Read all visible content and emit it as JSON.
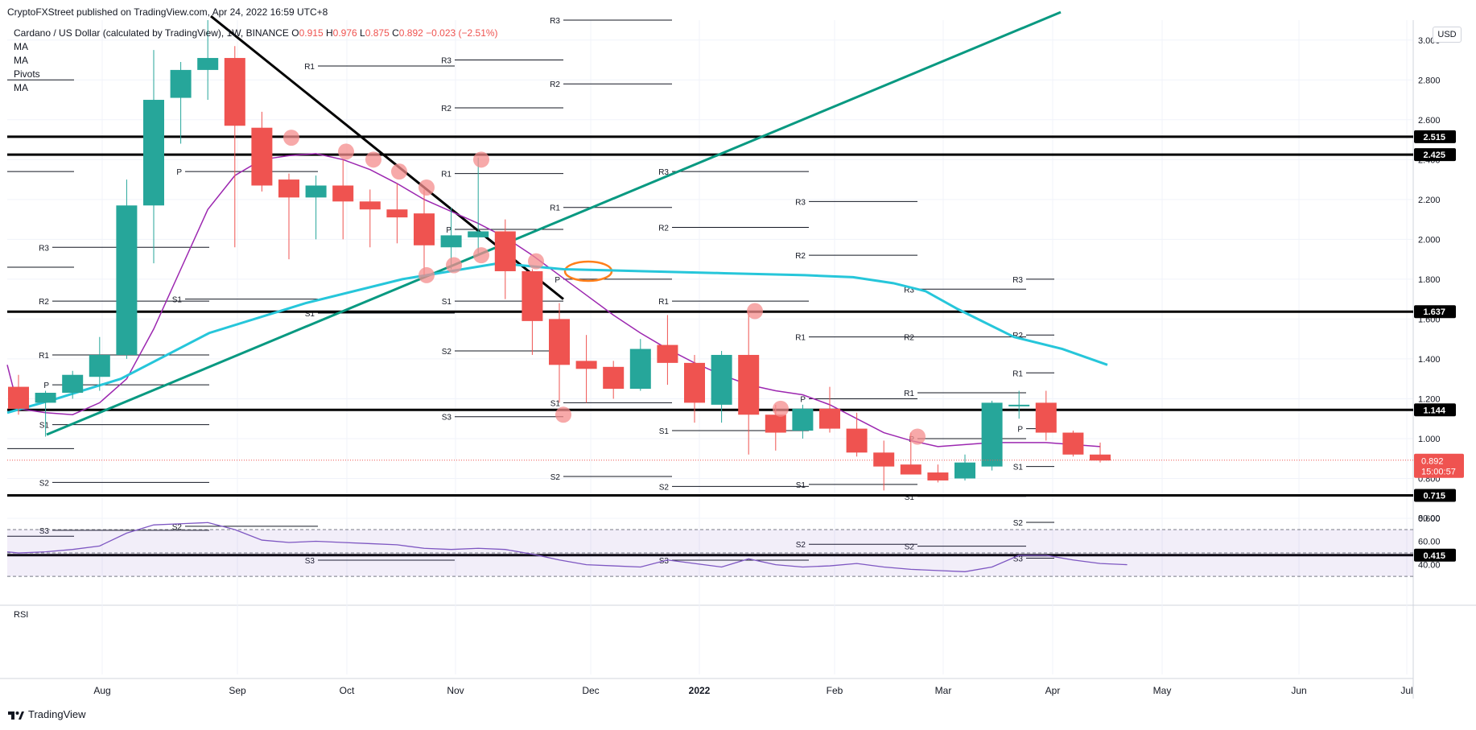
{
  "header": {
    "published": "CryptoFXStreet published on TradingView.com, Apr 24, 2022 16:59 UTC+8",
    "symbol": "Cardano / US Dollar (calculated by TradingView)",
    "interval": "1W",
    "exchange": "BINANCE",
    "open_label": "O",
    "open": "0.915",
    "high_label": "H",
    "high": "0.976",
    "low_label": "L",
    "low": "0.875",
    "close_label": "C",
    "close": "0.892",
    "change": "−0.023 (−2.51%)",
    "indicators": [
      "MA",
      "MA",
      "Pivots",
      "MA"
    ]
  },
  "currency_button": "USD",
  "footer": {
    "brand": "TradingView"
  },
  "colors": {
    "up": "#26a69a",
    "down": "#ef5350",
    "ma_short": "#9c27b0",
    "ma_long": "#26c6da",
    "trendline": "#089981",
    "bubble": "#f48c8c",
    "circle": "#ff7f1a",
    "rsi": "#7e57c2"
  },
  "chart_data": {
    "type": "candlestick",
    "price_axis": {
      "ticks": [
        "3.000",
        "2.800",
        "2.600",
        "2.400",
        "2.200",
        "2.000",
        "1.800",
        "1.600",
        "1.400",
        "1.200",
        "1.000",
        "0.800",
        "0.600"
      ],
      "ylim": [
        0.3,
        3.2
      ]
    },
    "time_axis": {
      "labels": [
        "Aug",
        "Sep",
        "Oct",
        "Nov",
        "Dec",
        "2022",
        "Feb",
        "Mar",
        "Apr",
        "May",
        "Jun",
        "Jul"
      ]
    },
    "last_price": {
      "value": "0.892",
      "countdown": "15:00:57"
    },
    "candles": [
      {
        "date": "2021-07-12",
        "o": 1.26,
        "h": 1.32,
        "l": 1.12,
        "c": 1.15
      },
      {
        "date": "2021-07-19",
        "o": 1.18,
        "h": 1.24,
        "l": 1.01,
        "c": 1.23
      },
      {
        "date": "2021-07-26",
        "o": 1.23,
        "h": 1.34,
        "l": 1.2,
        "c": 1.32
      },
      {
        "date": "2021-08-02",
        "o": 1.31,
        "h": 1.51,
        "l": 1.24,
        "c": 1.42
      },
      {
        "date": "2021-08-09",
        "o": 1.42,
        "h": 2.3,
        "l": 1.4,
        "c": 2.17
      },
      {
        "date": "2021-08-16",
        "o": 2.17,
        "h": 2.95,
        "l": 1.88,
        "c": 2.7
      },
      {
        "date": "2021-08-23",
        "o": 2.71,
        "h": 2.89,
        "l": 2.48,
        "c": 2.85
      },
      {
        "date": "2021-08-30",
        "o": 2.85,
        "h": 3.1,
        "l": 2.7,
        "c": 2.91
      },
      {
        "date": "2021-09-06",
        "o": 2.91,
        "h": 2.97,
        "l": 1.96,
        "c": 2.57
      },
      {
        "date": "2021-09-13",
        "o": 2.56,
        "h": 2.64,
        "l": 2.24,
        "c": 2.27
      },
      {
        "date": "2021-09-20",
        "o": 2.3,
        "h": 2.33,
        "l": 1.9,
        "c": 2.21
      },
      {
        "date": "2021-09-27",
        "o": 2.21,
        "h": 2.32,
        "l": 2.0,
        "c": 2.27
      },
      {
        "date": "2021-10-04",
        "o": 2.27,
        "h": 2.4,
        "l": 2.0,
        "c": 2.19
      },
      {
        "date": "2021-10-11",
        "o": 2.19,
        "h": 2.25,
        "l": 1.96,
        "c": 2.15
      },
      {
        "date": "2021-10-18",
        "o": 2.15,
        "h": 2.28,
        "l": 1.98,
        "c": 2.11
      },
      {
        "date": "2021-10-25",
        "o": 2.13,
        "h": 2.25,
        "l": 1.82,
        "c": 1.97
      },
      {
        "date": "2021-11-01",
        "o": 1.96,
        "h": 2.16,
        "l": 1.85,
        "c": 2.02
      },
      {
        "date": "2021-11-08",
        "o": 2.01,
        "h": 2.41,
        "l": 1.93,
        "c": 2.04
      },
      {
        "date": "2021-11-15",
        "o": 2.04,
        "h": 2.1,
        "l": 1.7,
        "c": 1.84
      },
      {
        "date": "2021-11-22",
        "o": 1.84,
        "h": 1.85,
        "l": 1.42,
        "c": 1.59
      },
      {
        "date": "2021-11-29",
        "o": 1.6,
        "h": 1.68,
        "l": 1.18,
        "c": 1.37
      },
      {
        "date": "2021-12-06",
        "o": 1.39,
        "h": 1.52,
        "l": 1.18,
        "c": 1.35
      },
      {
        "date": "2021-12-13",
        "o": 1.36,
        "h": 1.39,
        "l": 1.2,
        "c": 1.25
      },
      {
        "date": "2021-12-20",
        "o": 1.25,
        "h": 1.5,
        "l": 1.24,
        "c": 1.45
      },
      {
        "date": "2021-12-27",
        "o": 1.47,
        "h": 1.62,
        "l": 1.27,
        "c": 1.38
      },
      {
        "date": "2022-01-03",
        "o": 1.38,
        "h": 1.42,
        "l": 1.08,
        "c": 1.18
      },
      {
        "date": "2022-01-10",
        "o": 1.17,
        "h": 1.44,
        "l": 1.08,
        "c": 1.42
      },
      {
        "date": "2022-01-17",
        "o": 1.42,
        "h": 1.64,
        "l": 0.92,
        "c": 1.12
      },
      {
        "date": "2022-01-24",
        "o": 1.12,
        "h": 1.17,
        "l": 0.94,
        "c": 1.03
      },
      {
        "date": "2022-01-31",
        "o": 1.04,
        "h": 1.17,
        "l": 1.0,
        "c": 1.15
      },
      {
        "date": "2022-02-07",
        "o": 1.15,
        "h": 1.26,
        "l": 1.03,
        "c": 1.05
      },
      {
        "date": "2022-02-14",
        "o": 1.05,
        "h": 1.13,
        "l": 0.91,
        "c": 0.93
      },
      {
        "date": "2022-02-21",
        "o": 0.93,
        "h": 0.99,
        "l": 0.74,
        "c": 0.86
      },
      {
        "date": "2022-02-28",
        "o": 0.87,
        "h": 1.03,
        "l": 0.82,
        "c": 0.82
      },
      {
        "date": "2022-03-07",
        "o": 0.83,
        "h": 0.87,
        "l": 0.78,
        "c": 0.79
      },
      {
        "date": "2022-03-14",
        "o": 0.8,
        "h": 0.92,
        "l": 0.79,
        "c": 0.88
      },
      {
        "date": "2022-03-21",
        "o": 0.86,
        "h": 1.19,
        "l": 0.84,
        "c": 1.18
      },
      {
        "date": "2022-03-28",
        "o": 1.17,
        "h": 1.24,
        "l": 1.1,
        "c": 1.17
      },
      {
        "date": "2022-04-04",
        "o": 1.18,
        "h": 1.24,
        "l": 0.99,
        "c": 1.03
      },
      {
        "date": "2022-04-11",
        "o": 1.03,
        "h": 1.04,
        "l": 0.91,
        "c": 0.92
      },
      {
        "date": "2022-04-18",
        "o": 0.92,
        "h": 0.98,
        "l": 0.88,
        "c": 0.89
      }
    ],
    "horizontal_levels": [
      {
        "value": 2.515,
        "label": "2.515"
      },
      {
        "value": 2.425,
        "label": "2.425"
      },
      {
        "value": 1.637,
        "label": "1.637"
      },
      {
        "value": 1.144,
        "label": "1.144"
      },
      {
        "value": 0.715,
        "label": "0.715"
      },
      {
        "value": 0.415,
        "label": "0.415"
      }
    ],
    "pivot_labels": [
      "R3",
      "R2",
      "R1",
      "P",
      "S1",
      "S2",
      "S3"
    ],
    "rsi": {
      "label": "RSI",
      "ticks": [
        "80.00",
        "60.00",
        "40.00"
      ],
      "ylim": [
        28,
        82
      ],
      "bands": [
        70,
        50,
        30
      ],
      "values": [
        51,
        50,
        51,
        53,
        56,
        67,
        74,
        75,
        76,
        70,
        61,
        59,
        60,
        59,
        58,
        57,
        54,
        53,
        54,
        53,
        49,
        44,
        40,
        39,
        38,
        44,
        41,
        38,
        45,
        40,
        38,
        39,
        41,
        38,
        36,
        35,
        34,
        38,
        48,
        48,
        44,
        41,
        40
      ]
    }
  }
}
